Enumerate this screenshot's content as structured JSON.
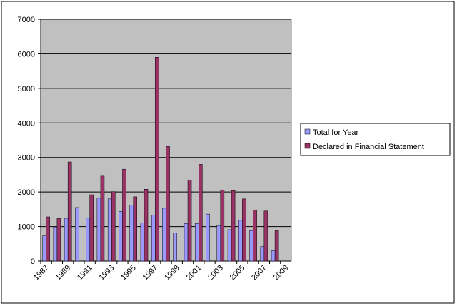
{
  "chart_data": {
    "type": "bar",
    "categories": [
      "1987",
      null,
      "1989",
      null,
      "1991",
      null,
      "1993",
      null,
      "1995",
      null,
      "1997",
      null,
      "1999",
      null,
      "2001",
      null,
      "2003",
      null,
      "2005",
      null,
      "2007",
      null,
      "2009"
    ],
    "series": [
      {
        "name": "Total for Year",
        "color": "#9999ff",
        "values": [
          730,
          990,
          1240,
          1550,
          1250,
          1820,
          1800,
          1440,
          1620,
          1110,
          1330,
          1530,
          810,
          1090,
          1090,
          1360,
          1030,
          910,
          1180,
          880,
          420,
          300,
          null
        ]
      },
      {
        "name": "Declared in Financial Statement",
        "color": "#993366",
        "values": [
          1280,
          1230,
          2870,
          null,
          1920,
          2460,
          2010,
          2660,
          1860,
          2080,
          5900,
          3320,
          null,
          2340,
          2800,
          null,
          2060,
          2040,
          1800,
          1470,
          1450,
          880,
          null
        ]
      }
    ],
    "ylim": [
      0,
      7000
    ],
    "yticks": [
      0,
      1000,
      2000,
      3000,
      4000,
      5000,
      6000,
      7000
    ],
    "grid": true,
    "plot_background": "#c0c0c0"
  }
}
